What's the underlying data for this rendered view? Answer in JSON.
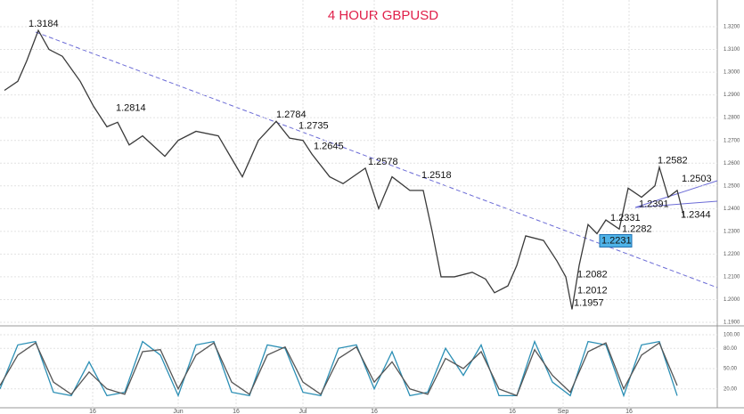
{
  "chart_data": [
    {
      "type": "line",
      "title": "4 HOUR GBPUSD",
      "xlim": [
        0,
        161
      ],
      "ylim": [
        1.19,
        1.325
      ],
      "yticks": [
        {
          "value": 1.32,
          "label": "1.3200"
        },
        {
          "value": 1.31,
          "label": "1.3100"
        },
        {
          "value": 1.3,
          "label": "1.3000"
        },
        {
          "value": 1.29,
          "label": "1.2900"
        },
        {
          "value": 1.28,
          "label": "1.2800"
        },
        {
          "value": 1.27,
          "label": "1.2700"
        },
        {
          "value": 1.26,
          "label": "1.2600"
        },
        {
          "value": 1.25,
          "label": "1.2500"
        },
        {
          "value": 1.24,
          "label": "1.2400"
        },
        {
          "value": 1.23,
          "label": "1.2300"
        },
        {
          "value": 1.22,
          "label": "1.2200"
        },
        {
          "value": 1.21,
          "label": "1.2100"
        },
        {
          "value": 1.2,
          "label": "1.2000"
        },
        {
          "value": 1.19,
          "label": "1.1900"
        }
      ],
      "xticks": [
        {
          "value": 20.8,
          "label": "16"
        },
        {
          "value": 40,
          "label": "Jun"
        },
        {
          "value": 53,
          "label": "16"
        },
        {
          "value": 68,
          "label": "Jul"
        },
        {
          "value": 84,
          "label": "16"
        },
        {
          "value": 115,
          "label": "16"
        },
        {
          "value": 126.4,
          "label": "Sep"
        },
        {
          "value": 141.2,
          "label": "16"
        }
      ],
      "grid": true,
      "series": [
        {
          "color": "#3a3a3a",
          "x": [
            1,
            4,
            6,
            8.6,
            11,
            14,
            18,
            21,
            24,
            26.4,
            29,
            32,
            37,
            40,
            44,
            49,
            52,
            54.4,
            58,
            62,
            65,
            68,
            70,
            74,
            77,
            82,
            85,
            88,
            92,
            95,
            97,
            99,
            102,
            106,
            109,
            111,
            114,
            116,
            118,
            122,
            125,
            127,
            128.4,
            130,
            132,
            134,
            136,
            139,
            141,
            144,
            147,
            148,
            150,
            152,
            153.6
          ],
          "values": [
            1.292,
            1.296,
            1.305,
            1.3184,
            1.31,
            1.307,
            1.296,
            1.285,
            1.276,
            1.278,
            1.268,
            1.272,
            1.263,
            1.27,
            1.274,
            1.272,
            1.262,
            1.254,
            1.27,
            1.2784,
            1.271,
            1.27,
            1.264,
            1.254,
            1.251,
            1.2578,
            1.24,
            1.254,
            1.248,
            1.248,
            1.23,
            1.21,
            1.21,
            1.212,
            1.209,
            1.203,
            1.206,
            1.215,
            1.228,
            1.226,
            1.217,
            1.21,
            1.1957,
            1.215,
            1.233,
            1.229,
            1.235,
            1.231,
            1.249,
            1.245,
            1.25,
            1.2582,
            1.245,
            1.248,
            1.236
          ]
        }
      ],
      "annotations": [
        {
          "value": 1.3184,
          "x": 6.4
        },
        {
          "value": 1.2814,
          "x": 26
        },
        {
          "value": 1.2784,
          "x": 62
        },
        {
          "value": 1.2735,
          "x": 67
        },
        {
          "value": 1.2645,
          "x": 70.4
        },
        {
          "value": 1.2578,
          "x": 82.6
        },
        {
          "value": 1.2518,
          "x": 94.6
        },
        {
          "value": 1.2582,
          "x": 147.6
        },
        {
          "value": 1.2503,
          "x": 153
        },
        {
          "value": 1.2391,
          "x": 143.4
        },
        {
          "value": 1.2331,
          "x": 137
        },
        {
          "value": 1.2282,
          "x": 139.6
        },
        {
          "value": 1.2231,
          "x": 135
        },
        {
          "value": 1.2344,
          "x": 152.8
        },
        {
          "value": 1.2082,
          "x": 129.6
        },
        {
          "value": 1.2012,
          "x": 129.6
        },
        {
          "value": 1.1957,
          "x": 128.8
        }
      ]
    },
    {
      "type": "line",
      "xlim": [
        0,
        161
      ],
      "ylim": [
        0,
        100
      ],
      "yticks": [
        {
          "value": 100,
          "label": "100.00"
        },
        {
          "value": 80,
          "label": "80.00"
        },
        {
          "value": 50,
          "label": "50.00"
        },
        {
          "value": 20,
          "label": "20.00"
        }
      ],
      "series": [
        {
          "color": "#2b8fb5",
          "x": [
            0,
            4,
            8,
            12,
            16,
            20,
            24,
            28,
            32,
            36,
            40,
            44,
            48,
            52,
            56,
            60,
            64,
            68,
            72,
            76,
            80,
            84,
            88,
            92,
            96,
            100,
            104,
            108,
            112,
            116,
            120,
            124,
            128,
            132,
            136,
            140,
            144,
            148,
            152
          ],
          "values": [
            20,
            85,
            90,
            15,
            10,
            60,
            10,
            15,
            90,
            70,
            10,
            85,
            90,
            15,
            10,
            85,
            80,
            15,
            10,
            80,
            85,
            20,
            75,
            10,
            15,
            80,
            40,
            85,
            10,
            10,
            90,
            30,
            10,
            90,
            85,
            10,
            85,
            90,
            10
          ]
        },
        {
          "color": "#555555",
          "x": [
            0,
            4,
            8,
            12,
            16,
            20,
            24,
            28,
            32,
            36,
            40,
            44,
            48,
            52,
            56,
            60,
            64,
            68,
            72,
            76,
            80,
            84,
            88,
            92,
            96,
            100,
            104,
            108,
            112,
            116,
            120,
            124,
            128,
            132,
            136,
            140,
            144,
            148,
            152
          ],
          "values": [
            25,
            70,
            88,
            30,
            12,
            45,
            20,
            12,
            75,
            78,
            20,
            70,
            88,
            30,
            12,
            70,
            82,
            30,
            12,
            65,
            82,
            30,
            60,
            20,
            12,
            65,
            50,
            75,
            20,
            10,
            78,
            40,
            15,
            75,
            88,
            20,
            70,
            88,
            25
          ]
        }
      ]
    }
  ]
}
